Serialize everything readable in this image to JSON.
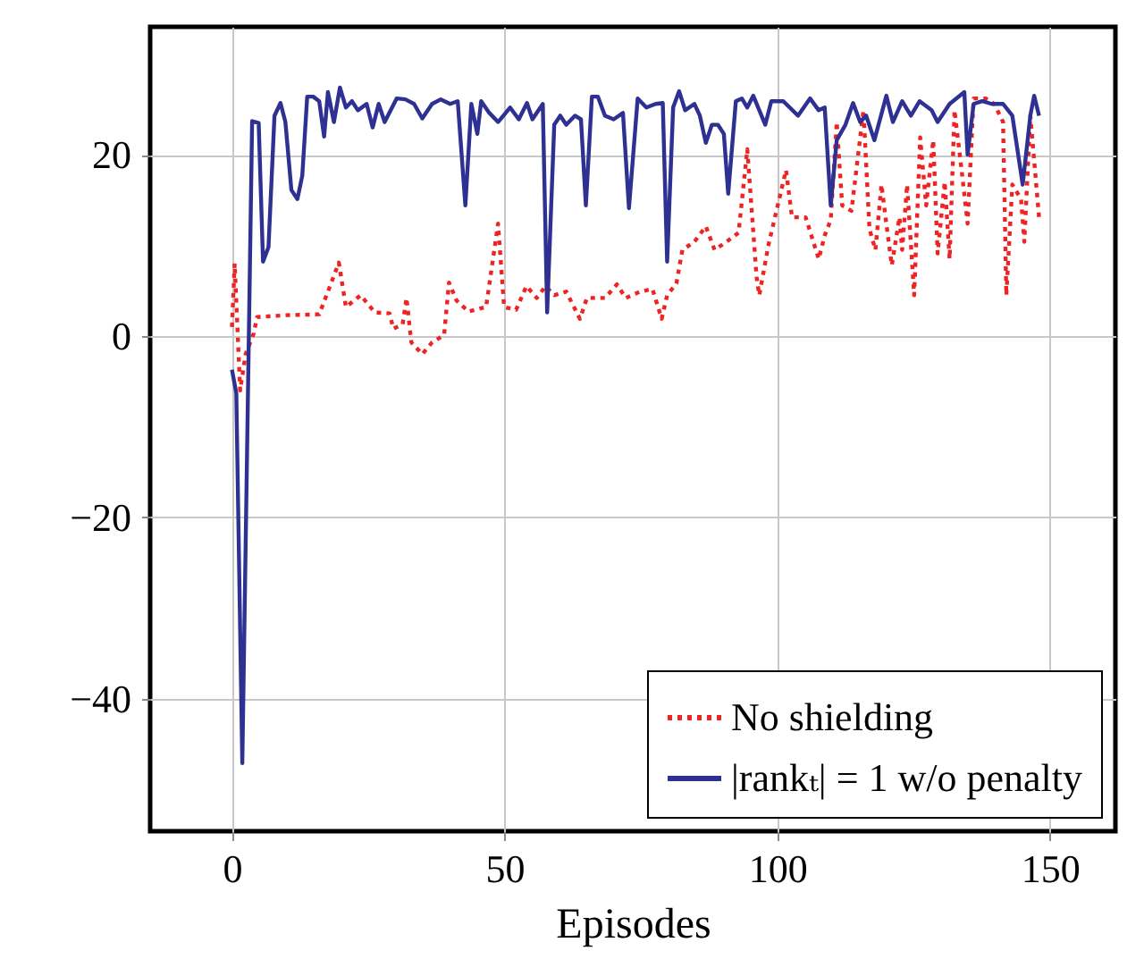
{
  "chart_data": {
    "type": "line",
    "xlabel": "Episodes",
    "xlim": [
      -15,
      162
    ],
    "ylim": [
      -54.6,
      34.1
    ],
    "xticks": [
      0,
      50,
      100,
      150
    ],
    "yticks": [
      -40,
      -20,
      0,
      20
    ],
    "grid": true,
    "legend": "bottom right",
    "marker": "none",
    "series": [
      {
        "name": "No shielding",
        "color": "#ee2424",
        "line_style": "dotted",
        "x": [
          0,
          0.5,
          1.5,
          2.5,
          4,
          4.6,
          10,
          16,
          17.6,
          19.6,
          20.9,
          23.6,
          26.2,
          28.9,
          29.6,
          31.3,
          32,
          32.9,
          34.9,
          36.7,
          38.9,
          39.8,
          41.2,
          43.4,
          46.6,
          48.8,
          49.9,
          52.1,
          54,
          55.9,
          57.5,
          59.1,
          61.3,
          63.8,
          65.1,
          68.4,
          70.6,
          72.2,
          74.9,
          77.1,
          78.8,
          79.8,
          81.5,
          82.6,
          84.8,
          86.9,
          88.5,
          90.7,
          92.9,
          94.5,
          96.2,
          96.7,
          98.4,
          101.6,
          102.7,
          105.2,
          107.6,
          108.7,
          109.8,
          110.9,
          111.9,
          113.6,
          115.8,
          116.9,
          118,
          119.1,
          120.2,
          121,
          122.4,
          122.9,
          123.8,
          125.1,
          126.2,
          127.3,
          128.6,
          129.4,
          130.7,
          131.6,
          132.5,
          133.8,
          134.9,
          136,
          138.2,
          139.8,
          141.4,
          142,
          143.1,
          144.7,
          145.3,
          146.4,
          148
        ],
        "values": [
          1,
          8,
          -6,
          -2,
          0.3,
          2.1,
          2.3,
          2.4,
          4.9,
          8.1,
          3.2,
          4.5,
          2.6,
          2.5,
          0.8,
          1.3,
          4.2,
          -0.7,
          -2,
          -0.7,
          0.1,
          5.9,
          3.9,
          2.7,
          3.2,
          12.4,
          3.2,
          2.9,
          5.5,
          4.2,
          5.5,
          4.5,
          4.9,
          1.9,
          4.2,
          4.2,
          5.7,
          4.2,
          4.9,
          5.2,
          1.9,
          4.5,
          5.8,
          9.5,
          10.4,
          12.1,
          9.5,
          10.4,
          11.4,
          20.6,
          6.5,
          4.5,
          10.1,
          18.3,
          13.1,
          13.1,
          8.5,
          11.1,
          12.8,
          23.6,
          14.4,
          13.8,
          24.9,
          11.8,
          9.5,
          16.7,
          11.4,
          7.8,
          13.1,
          9.5,
          16.7,
          4.5,
          21.9,
          14.4,
          21.6,
          9.1,
          17,
          8.5,
          24.9,
          18.3,
          12.4,
          26.2,
          26.2,
          25.6,
          23.6,
          4.5,
          16.7,
          15.1,
          10.4,
          24.3,
          13.1
        ]
      },
      {
        "name": "|rankₜ| = 1 w/o penalty",
        "color": "#2e3192",
        "line_style": "solid",
        "x": [
          0,
          0.8,
          1.9,
          3.7,
          4.9,
          5.7,
          6.7,
          7.8,
          8.9,
          9.8,
          10.9,
          12,
          12.9,
          13.8,
          14.9,
          16,
          16.9,
          17.6,
          18.7,
          19.8,
          20.9,
          22,
          23.1,
          24.7,
          25.8,
          26.9,
          28,
          30.2,
          31.8,
          33.4,
          34.9,
          36.7,
          38.3,
          40,
          41.4,
          42.8,
          43.9,
          45,
          45.7,
          47.2,
          48.8,
          51,
          52.6,
          54.1,
          55.1,
          57,
          57.8,
          59.1,
          60.2,
          61.3,
          62.9,
          64,
          64.9,
          66,
          67.1,
          68.4,
          70,
          71.7,
          72.8,
          74.4,
          76,
          77.7,
          79,
          79.8,
          80.9,
          82,
          83.1,
          84.8,
          85.8,
          86.9,
          88,
          89.1,
          90.2,
          91,
          92.4,
          93.5,
          94.5,
          95.6,
          96.7,
          97.8,
          98.9,
          101.1,
          103.8,
          106,
          107.6,
          108.7,
          109.8,
          110.9,
          112.5,
          113.9,
          115.2,
          116.3,
          117.8,
          120,
          121.2,
          122.9,
          124.5,
          126.1,
          128.3,
          129.4,
          131.6,
          134.3,
          134.9,
          136,
          137.6,
          139.3,
          141.4,
          143.1,
          145,
          146.4,
          147.1,
          148
        ],
        "values": [
          -3.7,
          -6.3,
          -47.1,
          23.7,
          23.5,
          8.2,
          9.8,
          24.3,
          25.7,
          23.6,
          16.1,
          15.1,
          17.7,
          26.4,
          26.4,
          25.9,
          22,
          26.9,
          23.6,
          27.4,
          25.2,
          25.9,
          24.9,
          25.6,
          23,
          25.6,
          23.6,
          26.2,
          26.1,
          25.6,
          24,
          25.6,
          26.1,
          25.6,
          25.9,
          14.4,
          25.6,
          22.3,
          25.9,
          24.6,
          23.6,
          25.2,
          23.9,
          25.7,
          23.9,
          25.6,
          2.6,
          23.3,
          24.3,
          23.3,
          24.3,
          23.9,
          14.4,
          26.4,
          26.4,
          24.3,
          23.9,
          24.6,
          14.1,
          26.2,
          25.2,
          25.6,
          25.7,
          8.2,
          25.2,
          27,
          24.9,
          25.6,
          24.3,
          21.3,
          23.3,
          23.3,
          22.3,
          15.7,
          25.9,
          26.2,
          25.2,
          26.5,
          24.9,
          23.3,
          25.9,
          25.9,
          24.3,
          26.2,
          24.9,
          25.2,
          14.4,
          21.6,
          23.3,
          25.7,
          23.6,
          24.3,
          21.6,
          26.5,
          23.6,
          25.9,
          24.3,
          25.9,
          24.9,
          23.6,
          25.6,
          26.9,
          20,
          25.6,
          25.9,
          25.6,
          25.6,
          24.3,
          16.7,
          24.3,
          26.5,
          24.3
        ]
      }
    ]
  }
}
